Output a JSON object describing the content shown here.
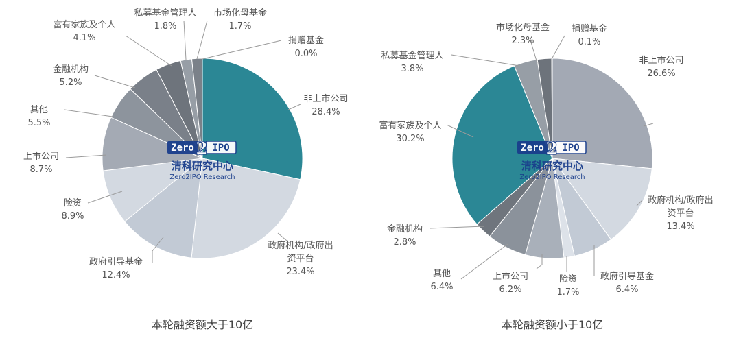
{
  "chart_data": [
    {
      "type": "pie",
      "caption": "本轮融资额大于10亿",
      "watermark": {
        "logo_left": "Zero",
        "logo_digit": "2",
        "logo_right": "IPO",
        "name": "清科研究中心",
        "sub": "Zero2IPO Research"
      },
      "slices": [
        {
          "lines": [
            "非上市公司"
          ],
          "pct": "28.4%",
          "value": 28.4,
          "color": "#2b8795"
        },
        {
          "lines": [
            "政府机构/政府出",
            "资平台"
          ],
          "pct": "23.4%",
          "value": 23.4,
          "color": "#d3d9e1"
        },
        {
          "lines": [
            "政府引导基金"
          ],
          "pct": "12.4%",
          "value": 12.4,
          "color": "#c2cad5"
        },
        {
          "lines": [
            "险资"
          ],
          "pct": "8.9%",
          "value": 8.9,
          "color": "#d3d9e1"
        },
        {
          "lines": [
            "上市公司"
          ],
          "pct": "8.7%",
          "value": 8.7,
          "color": "#a4aab4"
        },
        {
          "lines": [
            "其他"
          ],
          "pct": "5.5%",
          "value": 5.5,
          "color": "#8d949d"
        },
        {
          "lines": [
            "金融机构"
          ],
          "pct": "5.2%",
          "value": 5.2,
          "color": "#7a8089"
        },
        {
          "lines": [
            "富有家族及个人"
          ],
          "pct": "4.1%",
          "value": 4.1,
          "color": "#6e747c"
        },
        {
          "lines": [
            "私募基金管理人"
          ],
          "pct": "1.8%",
          "value": 1.8,
          "color": "#979ea6"
        },
        {
          "lines": [
            "市场化母基金"
          ],
          "pct": "1.7%",
          "value": 1.7,
          "color": "#7b8189"
        },
        {
          "lines": [
            "捐赠基金"
          ],
          "pct": "0.0%",
          "value": 0.0,
          "color": "#646a72"
        }
      ]
    },
    {
      "type": "pie",
      "caption": "本轮融资额小于10亿",
      "watermark": {
        "logo_left": "Zero",
        "logo_digit": "2",
        "logo_right": "IPO",
        "name": "清科研究中心",
        "sub": "Zero2IPO Research"
      },
      "slices": [
        {
          "lines": [
            "非上市公司"
          ],
          "pct": "26.6%",
          "value": 26.6,
          "color": "#a3a9b4"
        },
        {
          "lines": [
            "政府机构/政府出",
            "资平台"
          ],
          "pct": "13.4%",
          "value": 13.4,
          "color": "#d3d9e1"
        },
        {
          "lines": [
            "政府引导基金"
          ],
          "pct": "6.4%",
          "value": 6.4,
          "color": "#c2cad5"
        },
        {
          "lines": [
            "险资"
          ],
          "pct": "1.7%",
          "value": 1.7,
          "color": "#dde2e9"
        },
        {
          "lines": [
            "上市公司"
          ],
          "pct": "6.2%",
          "value": 6.2,
          "color": "#a9b0ba"
        },
        {
          "lines": [
            "其他"
          ],
          "pct": "6.4%",
          "value": 6.4,
          "color": "#8b929b"
        },
        {
          "lines": [
            "金融机构"
          ],
          "pct": "2.8%",
          "value": 2.8,
          "color": "#6f757d"
        },
        {
          "lines": [
            "富有家族及个人"
          ],
          "pct": "30.2%",
          "value": 30.2,
          "color": "#2b8795"
        },
        {
          "lines": [
            "私募基金管理人"
          ],
          "pct": "3.8%",
          "value": 3.8,
          "color": "#979ea6"
        },
        {
          "lines": [
            "市场化母基金"
          ],
          "pct": "2.3%",
          "value": 2.3,
          "color": "#6d737b"
        },
        {
          "lines": [
            "捐赠基金"
          ],
          "pct": "0.1%",
          "value": 0.1,
          "color": "#5c6168"
        }
      ]
    }
  ]
}
